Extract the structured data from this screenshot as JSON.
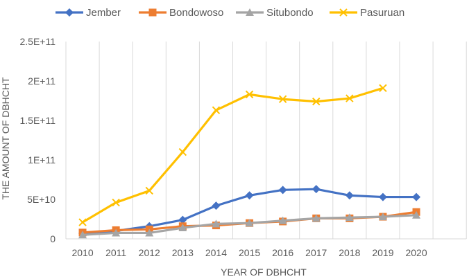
{
  "chart_data": {
    "type": "line",
    "xlabel": "YEAR OF DBHCHT",
    "ylabel": "THE AMOUNT OF DBHCHT",
    "categories": [
      "2010",
      "2011",
      "2012",
      "2013",
      "2014",
      "2015",
      "2016",
      "2017",
      "2018",
      "2019",
      "2020"
    ],
    "ylim": [
      0,
      250000000000
    ],
    "yticks": [
      {
        "value": 0,
        "label": "0"
      },
      {
        "value": 50000000000,
        "label": "5E+10"
      },
      {
        "value": 100000000000,
        "label": "1E+11"
      },
      {
        "value": 150000000000,
        "label": "1.5E+11"
      },
      {
        "value": 200000000000,
        "label": "2E+11"
      },
      {
        "value": 250000000000,
        "label": "2.5E+11"
      }
    ],
    "grid": "vertical",
    "legend_position": "top",
    "series": [
      {
        "name": "Jember",
        "color": "#4472C4",
        "marker": "diamond",
        "values": [
          7000000000,
          10000000000,
          16000000000,
          24000000000,
          42000000000,
          55000000000,
          62000000000,
          63000000000,
          55000000000,
          53000000000,
          53000000000
        ]
      },
      {
        "name": "Bondowoso",
        "color": "#ED7D31",
        "marker": "square",
        "values": [
          8000000000,
          11000000000,
          12000000000,
          16000000000,
          17000000000,
          20000000000,
          22000000000,
          26000000000,
          26000000000,
          28000000000,
          34000000000
        ]
      },
      {
        "name": "Situbondo",
        "color": "#A5A5A5",
        "marker": "triangle",
        "values": [
          5000000000,
          7500000000,
          7500000000,
          14000000000,
          19000000000,
          20000000000,
          23000000000,
          26000000000,
          27000000000,
          28000000000,
          30000000000
        ]
      },
      {
        "name": "Pasuruan",
        "color": "#FFC000",
        "marker": "x",
        "values": [
          21000000000,
          46000000000,
          61000000000,
          110000000000,
          163000000000,
          183000000000,
          177000000000,
          174000000000,
          178000000000,
          191000000000,
          null
        ]
      }
    ]
  }
}
